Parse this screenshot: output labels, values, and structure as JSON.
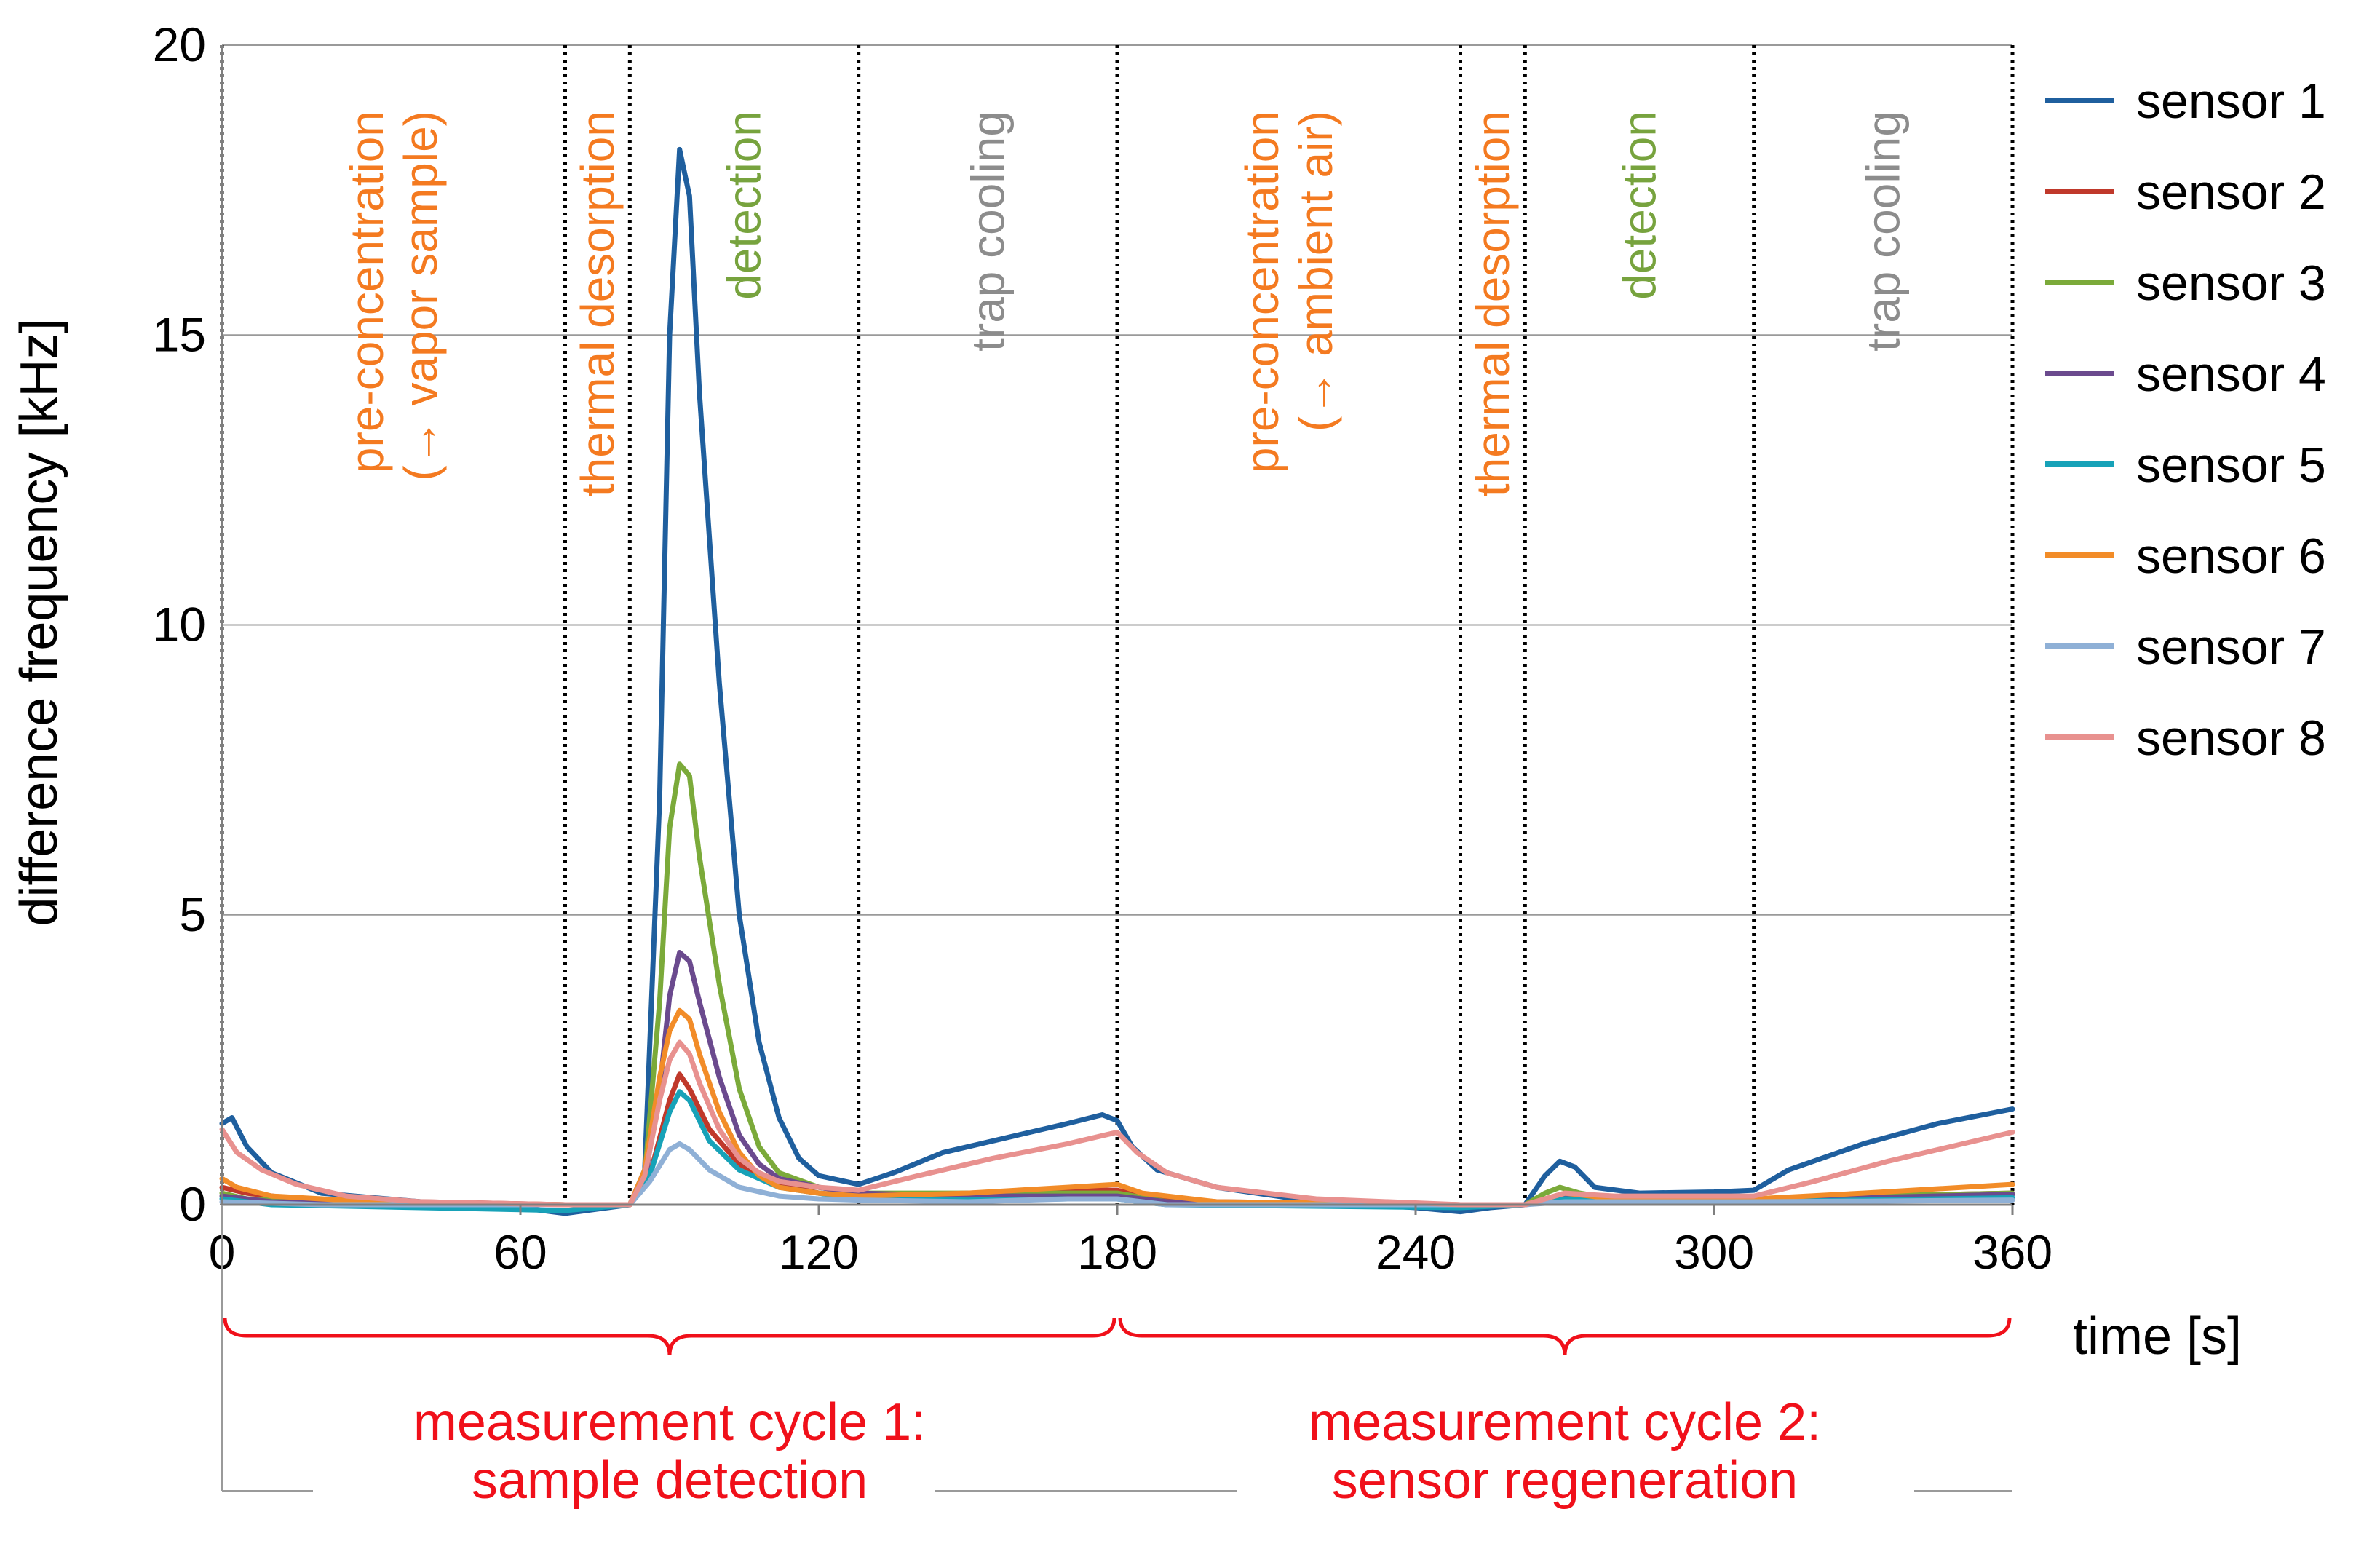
{
  "chart_data": {
    "type": "line",
    "title": "",
    "xlabel": "time [s]",
    "ylabel": "difference frequency [kHz]",
    "xlim": [
      0,
      360
    ],
    "ylim": [
      0,
      20
    ],
    "x_ticks": [
      0,
      60,
      120,
      180,
      240,
      300,
      360
    ],
    "x_tick_labels": [
      "0",
      "60",
      "120",
      "180",
      "240",
      "300",
      "360"
    ],
    "y_ticks": [
      0,
      5,
      10,
      15,
      20
    ],
    "y_tick_labels": [
      "0",
      "5",
      "10",
      "15",
      "20"
    ],
    "grid": "horizontal",
    "legend_position": "right",
    "phase_boundaries": [
      0,
      69,
      82,
      128,
      180,
      249,
      262,
      308,
      360
    ],
    "phases": [
      {
        "lines": [
          "pre-concentration",
          "(→ vapor sample)"
        ],
        "start": 0,
        "end": 69,
        "color": "#F47A20"
      },
      {
        "lines": [
          "thermal desorption"
        ],
        "start": 69,
        "end": 82,
        "color": "#F47A20"
      },
      {
        "lines": [
          "detection"
        ],
        "start": 82,
        "end": 128,
        "color": "#77A33E"
      },
      {
        "lines": [
          "trap cooling"
        ],
        "start": 128,
        "end": 180,
        "color": "#8C8C8C"
      },
      {
        "lines": [
          "pre-concentration",
          "(→ ambient air)"
        ],
        "start": 180,
        "end": 249,
        "color": "#F47A20"
      },
      {
        "lines": [
          "thermal desorption"
        ],
        "start": 249,
        "end": 262,
        "color": "#F47A20"
      },
      {
        "lines": [
          "detection"
        ],
        "start": 262,
        "end": 308,
        "color": "#77A33E"
      },
      {
        "lines": [
          "trap cooling"
        ],
        "start": 308,
        "end": 360,
        "color": "#8C8C8C"
      }
    ],
    "cycles": [
      {
        "lines": [
          "measurement cycle 1:",
          "sample detection"
        ],
        "start": 0,
        "end": 180,
        "color": "#F0101A"
      },
      {
        "lines": [
          "measurement cycle 2:",
          "sensor regeneration"
        ],
        "start": 180,
        "end": 360,
        "color": "#F0101A"
      }
    ],
    "series": [
      {
        "name": "sensor 1",
        "color": "#1F5F9E",
        "points": [
          [
            0,
            1.4
          ],
          [
            2,
            1.5
          ],
          [
            5,
            1.0
          ],
          [
            10,
            0.55
          ],
          [
            20,
            0.2
          ],
          [
            40,
            0.05
          ],
          [
            60,
            -0.05
          ],
          [
            69,
            -0.15
          ],
          [
            75,
            -0.08
          ],
          [
            82,
            0.0
          ],
          [
            85,
            0.6
          ],
          [
            88,
            7
          ],
          [
            90,
            15
          ],
          [
            92,
            18.2
          ],
          [
            94,
            17.4
          ],
          [
            96,
            14
          ],
          [
            100,
            9
          ],
          [
            104,
            5
          ],
          [
            108,
            2.8
          ],
          [
            112,
            1.5
          ],
          [
            116,
            0.8
          ],
          [
            120,
            0.5
          ],
          [
            128,
            0.35
          ],
          [
            135,
            0.55
          ],
          [
            145,
            0.9
          ],
          [
            160,
            1.2
          ],
          [
            170,
            1.4
          ],
          [
            177,
            1.55
          ],
          [
            180,
            1.45
          ],
          [
            183,
            1.0
          ],
          [
            188,
            0.6
          ],
          [
            200,
            0.3
          ],
          [
            220,
            0.05
          ],
          [
            240,
            -0.05
          ],
          [
            249,
            -0.12
          ],
          [
            255,
            -0.05
          ],
          [
            262,
            0.0
          ],
          [
            266,
            0.5
          ],
          [
            269,
            0.75
          ],
          [
            272,
            0.65
          ],
          [
            276,
            0.3
          ],
          [
            285,
            0.2
          ],
          [
            300,
            0.22
          ],
          [
            308,
            0.25
          ],
          [
            315,
            0.6
          ],
          [
            330,
            1.05
          ],
          [
            345,
            1.4
          ],
          [
            360,
            1.65
          ]
        ]
      },
      {
        "name": "sensor 2",
        "color": "#C0392B",
        "points": [
          [
            0,
            0.3
          ],
          [
            5,
            0.2
          ],
          [
            15,
            0.1
          ],
          [
            40,
            0.05
          ],
          [
            69,
            0.0
          ],
          [
            82,
            0.0
          ],
          [
            86,
            0.5
          ],
          [
            90,
            1.8
          ],
          [
            92,
            2.25
          ],
          [
            94,
            2.0
          ],
          [
            98,
            1.3
          ],
          [
            104,
            0.7
          ],
          [
            112,
            0.35
          ],
          [
            120,
            0.2
          ],
          [
            128,
            0.15
          ],
          [
            150,
            0.2
          ],
          [
            170,
            0.25
          ],
          [
            180,
            0.25
          ],
          [
            185,
            0.15
          ],
          [
            200,
            0.05
          ],
          [
            249,
            0.0
          ],
          [
            262,
            0.0
          ],
          [
            269,
            0.15
          ],
          [
            275,
            0.1
          ],
          [
            308,
            0.1
          ],
          [
            330,
            0.15
          ],
          [
            360,
            0.2
          ]
        ]
      },
      {
        "name": "sensor 3",
        "color": "#7BAA3A",
        "points": [
          [
            0,
            0.2
          ],
          [
            5,
            0.1
          ],
          [
            20,
            0.05
          ],
          [
            69,
            0.0
          ],
          [
            82,
            0.0
          ],
          [
            85,
            0.5
          ],
          [
            88,
            3.5
          ],
          [
            90,
            6.5
          ],
          [
            92,
            7.6
          ],
          [
            94,
            7.4
          ],
          [
            96,
            6.0
          ],
          [
            100,
            3.8
          ],
          [
            104,
            2.0
          ],
          [
            108,
            1.0
          ],
          [
            112,
            0.55
          ],
          [
            120,
            0.3
          ],
          [
            128,
            0.2
          ],
          [
            150,
            0.2
          ],
          [
            170,
            0.2
          ],
          [
            180,
            0.2
          ],
          [
            190,
            0.05
          ],
          [
            249,
            0.0
          ],
          [
            262,
            0.0
          ],
          [
            266,
            0.2
          ],
          [
            269,
            0.3
          ],
          [
            273,
            0.2
          ],
          [
            280,
            0.1
          ],
          [
            308,
            0.1
          ],
          [
            330,
            0.15
          ],
          [
            360,
            0.2
          ]
        ]
      },
      {
        "name": "sensor 4",
        "color": "#6B4A8E",
        "points": [
          [
            0,
            0.15
          ],
          [
            10,
            0.05
          ],
          [
            69,
            0.0
          ],
          [
            82,
            0.0
          ],
          [
            85,
            0.4
          ],
          [
            88,
            2.0
          ],
          [
            90,
            3.6
          ],
          [
            92,
            4.35
          ],
          [
            94,
            4.2
          ],
          [
            96,
            3.5
          ],
          [
            100,
            2.2
          ],
          [
            104,
            1.2
          ],
          [
            108,
            0.7
          ],
          [
            112,
            0.45
          ],
          [
            120,
            0.3
          ],
          [
            128,
            0.2
          ],
          [
            150,
            0.15
          ],
          [
            170,
            0.15
          ],
          [
            180,
            0.15
          ],
          [
            190,
            0.05
          ],
          [
            249,
            0.0
          ],
          [
            262,
            0.0
          ],
          [
            270,
            0.15
          ],
          [
            280,
            0.1
          ],
          [
            308,
            0.1
          ],
          [
            330,
            0.12
          ],
          [
            360,
            0.18
          ]
        ]
      },
      {
        "name": "sensor 5",
        "color": "#17A2B8",
        "points": [
          [
            0,
            0.1
          ],
          [
            10,
            0.0
          ],
          [
            40,
            -0.05
          ],
          [
            69,
            -0.1
          ],
          [
            82,
            0.0
          ],
          [
            86,
            0.5
          ],
          [
            90,
            1.6
          ],
          [
            92,
            1.95
          ],
          [
            94,
            1.8
          ],
          [
            98,
            1.1
          ],
          [
            104,
            0.6
          ],
          [
            112,
            0.3
          ],
          [
            120,
            0.2
          ],
          [
            128,
            0.1
          ],
          [
            150,
            0.08
          ],
          [
            170,
            0.1
          ],
          [
            180,
            0.1
          ],
          [
            190,
            0.0
          ],
          [
            249,
            -0.05
          ],
          [
            262,
            0.0
          ],
          [
            270,
            0.1
          ],
          [
            308,
            0.05
          ],
          [
            330,
            0.08
          ],
          [
            360,
            0.12
          ]
        ]
      },
      {
        "name": "sensor 6",
        "color": "#F28C28",
        "points": [
          [
            0,
            0.45
          ],
          [
            3,
            0.3
          ],
          [
            10,
            0.15
          ],
          [
            30,
            0.05
          ],
          [
            69,
            0.0
          ],
          [
            82,
            0.0
          ],
          [
            85,
            0.6
          ],
          [
            88,
            2.2
          ],
          [
            90,
            3.0
          ],
          [
            92,
            3.35
          ],
          [
            94,
            3.2
          ],
          [
            96,
            2.6
          ],
          [
            100,
            1.6
          ],
          [
            104,
            0.9
          ],
          [
            108,
            0.5
          ],
          [
            112,
            0.3
          ],
          [
            120,
            0.2
          ],
          [
            128,
            0.15
          ],
          [
            150,
            0.2
          ],
          [
            170,
            0.3
          ],
          [
            180,
            0.35
          ],
          [
            185,
            0.2
          ],
          [
            200,
            0.05
          ],
          [
            249,
            0.0
          ],
          [
            262,
            0.0
          ],
          [
            270,
            0.2
          ],
          [
            280,
            0.1
          ],
          [
            308,
            0.1
          ],
          [
            330,
            0.2
          ],
          [
            360,
            0.35
          ]
        ]
      },
      {
        "name": "sensor 7",
        "color": "#8FB0D6",
        "points": [
          [
            0,
            0.05
          ],
          [
            20,
            0.0
          ],
          [
            69,
            0.0
          ],
          [
            82,
            0.0
          ],
          [
            86,
            0.4
          ],
          [
            90,
            0.95
          ],
          [
            92,
            1.05
          ],
          [
            94,
            0.95
          ],
          [
            98,
            0.6
          ],
          [
            104,
            0.3
          ],
          [
            112,
            0.15
          ],
          [
            120,
            0.1
          ],
          [
            128,
            0.08
          ],
          [
            150,
            0.05
          ],
          [
            170,
            0.1
          ],
          [
            180,
            0.1
          ],
          [
            190,
            0.0
          ],
          [
            249,
            0.0
          ],
          [
            262,
            0.0
          ],
          [
            270,
            0.05
          ],
          [
            308,
            0.05
          ],
          [
            330,
            0.06
          ],
          [
            360,
            0.08
          ]
        ]
      },
      {
        "name": "sensor 8",
        "color": "#E8918F",
        "points": [
          [
            0,
            1.3
          ],
          [
            3,
            0.9
          ],
          [
            8,
            0.6
          ],
          [
            15,
            0.35
          ],
          [
            25,
            0.15
          ],
          [
            40,
            0.05
          ],
          [
            69,
            0.0
          ],
          [
            82,
            0.0
          ],
          [
            85,
            0.5
          ],
          [
            88,
            1.8
          ],
          [
            90,
            2.5
          ],
          [
            92,
            2.8
          ],
          [
            94,
            2.6
          ],
          [
            96,
            2.1
          ],
          [
            100,
            1.3
          ],
          [
            104,
            0.8
          ],
          [
            108,
            0.55
          ],
          [
            112,
            0.4
          ],
          [
            120,
            0.3
          ],
          [
            128,
            0.25
          ],
          [
            140,
            0.5
          ],
          [
            155,
            0.8
          ],
          [
            170,
            1.05
          ],
          [
            180,
            1.25
          ],
          [
            184,
            0.9
          ],
          [
            190,
            0.55
          ],
          [
            200,
            0.3
          ],
          [
            220,
            0.1
          ],
          [
            249,
            0.0
          ],
          [
            262,
            0.0
          ],
          [
            270,
            0.2
          ],
          [
            280,
            0.15
          ],
          [
            308,
            0.15
          ],
          [
            320,
            0.4
          ],
          [
            335,
            0.75
          ],
          [
            350,
            1.05
          ],
          [
            360,
            1.25
          ]
        ]
      }
    ]
  }
}
